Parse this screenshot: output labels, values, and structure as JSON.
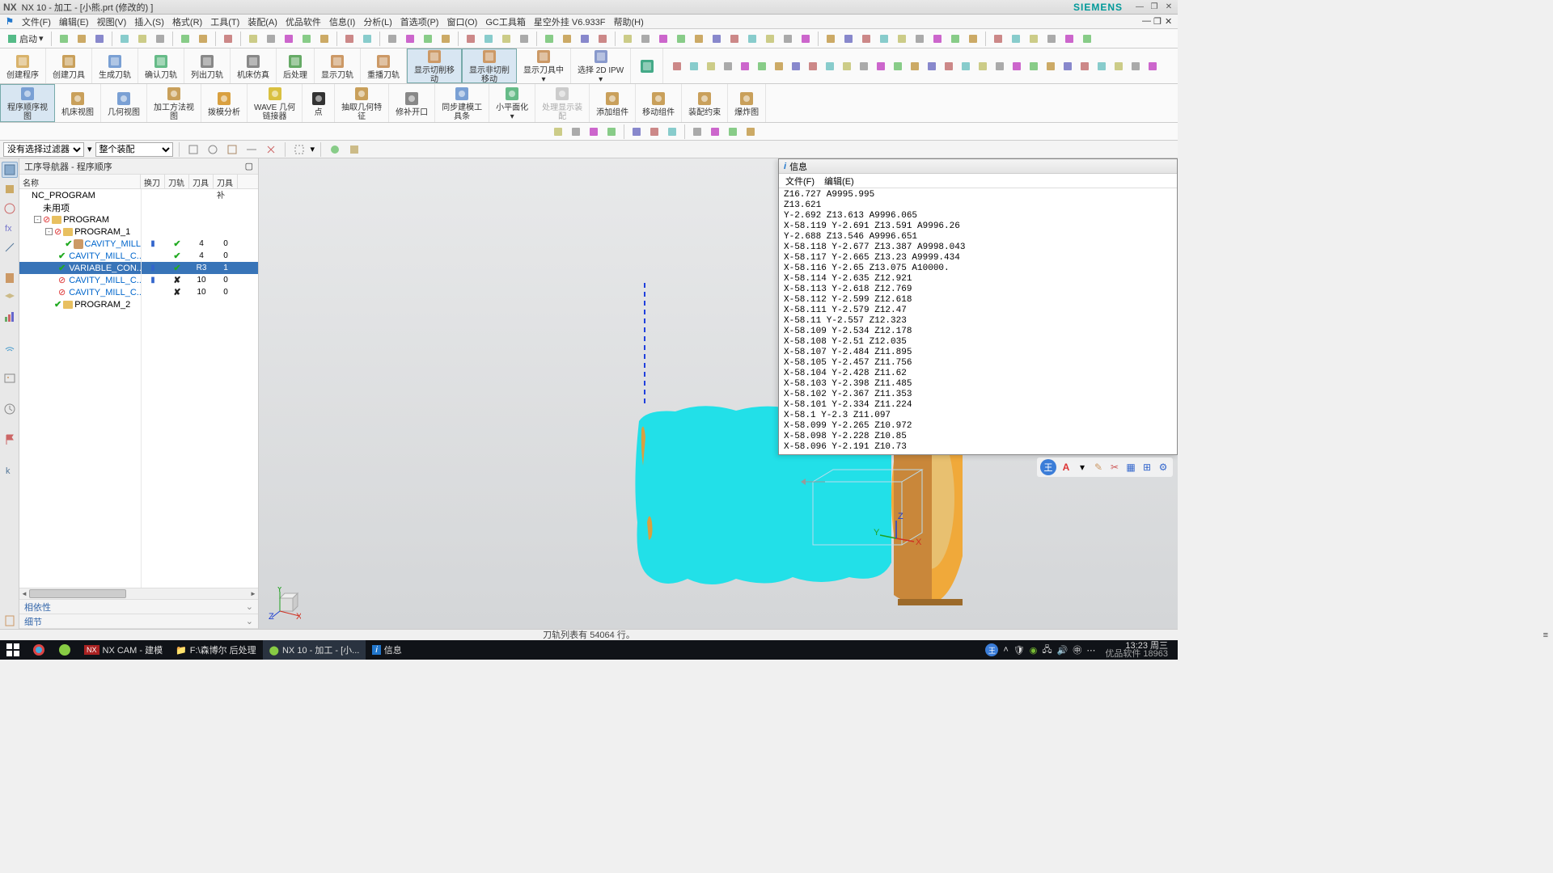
{
  "titlebar": {
    "app": "NX",
    "ver": "NX 10",
    "doc": "加工 - [小熊.prt  (修改的)  ]",
    "brand": "SIEMENS"
  },
  "menubar": {
    "items": [
      "文件(F)",
      "编辑(E)",
      "视图(V)",
      "插入(S)",
      "格式(R)",
      "工具(T)",
      "装配(A)",
      "优品软件",
      "信息(I)",
      "分析(L)",
      "首选项(P)",
      "窗口(O)",
      "GC工具箱",
      "星空外挂 V6.933F",
      "帮助(H)"
    ],
    "start": "启动"
  },
  "toolbar1_icons": [
    "new",
    "open",
    "save",
    "sep",
    "cut",
    "copy",
    "paste",
    "sep",
    "undo",
    "redo",
    "sep",
    "cmd",
    "sep",
    "arrow",
    "dropdown",
    "box",
    "grid",
    "play",
    "sep",
    "curve",
    "yellow",
    "sep",
    "line",
    "linev",
    "line2",
    "line3",
    "sep",
    "dim1",
    "dim2",
    "dim3",
    "dim4",
    "sep",
    "back",
    "fwd",
    "up",
    "refresh",
    "sep",
    "ext",
    "rev",
    "sweep",
    "hole",
    "pattern",
    "mirror",
    "shell",
    "draft",
    "edge",
    "unite",
    "subtract",
    "sep",
    "c1",
    "c2",
    "c3",
    "c4",
    "c5",
    "c6",
    "c7",
    "c8",
    "c9",
    "sep",
    "g1",
    "g2",
    "g3",
    "g4",
    "g5",
    "g6"
  ],
  "ribbon1": [
    {
      "label": "创建程序",
      "color": "#d9b36b"
    },
    {
      "label": "创建刀具",
      "color": "#c9a05b"
    },
    {
      "label": "生成刀轨",
      "color": "#7aa0d4"
    },
    {
      "label": "确认刀轨",
      "color": "#6b8"
    },
    {
      "label": "列出刀轨",
      "color": "#888"
    },
    {
      "label": "机床仿真",
      "color": "#888"
    },
    {
      "label": "后处理",
      "color": "#6a6"
    },
    {
      "label": "显示刀轨",
      "color": "#c96"
    },
    {
      "label": "重播刀轨",
      "color": "#c96"
    },
    {
      "label": "显示切削移\n动",
      "color": "#c96",
      "active": true
    },
    {
      "label": "显示非切削\n移动",
      "color": "#c96",
      "active": true
    },
    {
      "label": "显示刀具中\n▾",
      "color": "#c96"
    },
    {
      "label": "选择 2D IPW\n▾",
      "color": "#89c"
    },
    {
      "label": "",
      "color": "#4a8",
      "iconOnly": true
    }
  ],
  "ribbon1_right_icons": [
    "a",
    "b",
    "c",
    "d",
    "e",
    "f",
    "g",
    "h",
    "i",
    "j",
    "k",
    "l",
    "m",
    "n",
    "o",
    "p",
    "q",
    "r",
    "s",
    "t",
    "u",
    "v",
    "w",
    "x",
    "y",
    "z",
    "aa",
    "bb",
    "cc"
  ],
  "ribbon2": [
    {
      "label": "程序顺序视\n图",
      "color": "#7aa0d4",
      "active": true
    },
    {
      "label": "机床视图",
      "color": "#c9a05b"
    },
    {
      "label": "几何视图",
      "color": "#7aa0d4"
    },
    {
      "label": "加工方法视\n图",
      "color": "#c9a05b"
    },
    {
      "label": "拨模分析",
      "color": "#d9a040"
    },
    {
      "label": "WAVE 几何\n链接器",
      "color": "#d9c040"
    },
    {
      "label": "点",
      "color": "#333"
    },
    {
      "label": "抽取几何特\n征",
      "color": "#c9a05b"
    },
    {
      "label": "修补开口",
      "color": "#888"
    },
    {
      "label": "同步建模工\n具条",
      "color": "#7aa0d4"
    },
    {
      "label": "小平面化\n▾",
      "color": "#6b8"
    },
    {
      "label": "处理显示装\n配",
      "color": "#ccc",
      "dim": true
    },
    {
      "label": "添加组件",
      "color": "#c9a05b"
    },
    {
      "label": "移动组件",
      "color": "#c9a05b"
    },
    {
      "label": "装配约束",
      "color": "#c9a05b"
    },
    {
      "label": "爆炸图",
      "color": "#c9a05b"
    }
  ],
  "ribbon3_icons": [
    "a",
    "b",
    "c",
    "d",
    "sep",
    "e",
    "f",
    "g",
    "sep",
    "h",
    "i",
    "j",
    "k"
  ],
  "filterbar": {
    "sel1": "没有选择过滤器",
    "sel2": "整个装配"
  },
  "nav": {
    "title": "工序导航器 - 程序顺序",
    "cols": {
      "name": "名称",
      "a": "换刀",
      "b": "刀轨",
      "c": "刀具",
      "d": "刀具补"
    },
    "rows": [
      {
        "depth": 0,
        "exp": "",
        "icon": "prog",
        "text": "NC_PROGRAM"
      },
      {
        "depth": 1,
        "exp": "",
        "icon": "folder",
        "text": "未用项"
      },
      {
        "depth": 1,
        "exp": "-",
        "icon": "forbid",
        "fold": "y",
        "text": "PROGRAM"
      },
      {
        "depth": 2,
        "exp": "-",
        "icon": "forbid",
        "fold": "y",
        "text": "PROGRAM_1"
      },
      {
        "depth": 3,
        "exp": "",
        "icon": "op",
        "status": "ok",
        "text": "CAVITY_MILL",
        "link": true,
        "a": "▮",
        "b": "✔",
        "c": "4",
        "d": "0"
      },
      {
        "depth": 3,
        "exp": "",
        "icon": "op",
        "status": "ok",
        "text": "CAVITY_MILL_C...",
        "link": true,
        "a": "",
        "b": "✔",
        "c": "4",
        "d": "0"
      },
      {
        "depth": 3,
        "exp": "",
        "icon": "op",
        "status": "ok",
        "text": "VARIABLE_CON...",
        "link": true,
        "selected": true,
        "a": "▮",
        "b": "✔",
        "c": "R3",
        "d": "1"
      },
      {
        "depth": 3,
        "exp": "",
        "icon": "op",
        "status": "no",
        "text": "CAVITY_MILL_C...",
        "link": true,
        "a": "▮",
        "b": "✘",
        "c": "10",
        "d": "0"
      },
      {
        "depth": 3,
        "exp": "",
        "icon": "op",
        "status": "no",
        "text": "CAVITY_MILL_C...",
        "link": true,
        "a": "",
        "b": "✘",
        "c": "10",
        "d": "0"
      },
      {
        "depth": 2,
        "exp": "",
        "icon": "okfold",
        "fold": "y",
        "text": "PROGRAM_2"
      }
    ],
    "footer": [
      "相依性",
      "细节"
    ]
  },
  "info": {
    "title": "信息",
    "menu": [
      "文件(F)",
      "编辑(E)"
    ],
    "lines": [
      "Z16.727 A9995.995",
      "Z13.621",
      "Y-2.692 Z13.613 A9996.065",
      "X-58.119 Y-2.691 Z13.591 A9996.26",
      "Y-2.688 Z13.546 A9996.651",
      "X-58.118 Y-2.677 Z13.387 A9998.043",
      "X-58.117 Y-2.665 Z13.23 A9999.434",
      "X-58.116 Y-2.65 Z13.075 A10000.",
      "X-58.114 Y-2.635 Z12.921",
      "X-58.113 Y-2.618 Z12.769",
      "X-58.112 Y-2.599 Z12.618",
      "X-58.111 Y-2.579 Z12.47",
      "X-58.11 Y-2.557 Z12.323",
      "X-58.109 Y-2.534 Z12.178",
      "X-58.108 Y-2.51 Z12.035",
      "X-58.107 Y-2.484 Z11.895",
      "X-58.105 Y-2.457 Z11.756",
      "X-58.104 Y-2.428 Z11.62",
      "X-58.103 Y-2.398 Z11.485",
      "X-58.102 Y-2.367 Z11.353",
      "X-58.101 Y-2.334 Z11.224",
      "X-58.1 Y-2.3 Z11.097",
      "X-58.099 Y-2.265 Z10.972",
      "X-58.098 Y-2.228 Z10.85",
      "X-58.096 Y-2.191 Z10.73"
    ]
  },
  "status": "刀轨列表有 54064 行。",
  "annot_label": "王",
  "taskbar": {
    "items": [
      {
        "label": "",
        "icon": "win"
      },
      {
        "label": "",
        "icon": "circle1"
      },
      {
        "label": "",
        "icon": "circle2"
      },
      {
        "label": "NX CAM - 建模",
        "icon": "nx"
      },
      {
        "label": "F:\\森博尔  后处理",
        "icon": "folder"
      },
      {
        "label": "NX 10 - 加工 - [小...",
        "icon": "nx2",
        "active": true
      },
      {
        "label": "信息",
        "icon": "info"
      }
    ],
    "clock": {
      "time": "13:23",
      "date": "2023/5/18",
      "day": "周三"
    },
    "watermark": "优品软件 18963"
  },
  "colors": {
    "part": "#22e0e8",
    "fixture1": "#f0a93a",
    "fixture2": "#c9873a",
    "dash": "#2040dd",
    "axisX": "#d03020",
    "axisY": "#20a020",
    "axisZ": "#2040d0"
  }
}
